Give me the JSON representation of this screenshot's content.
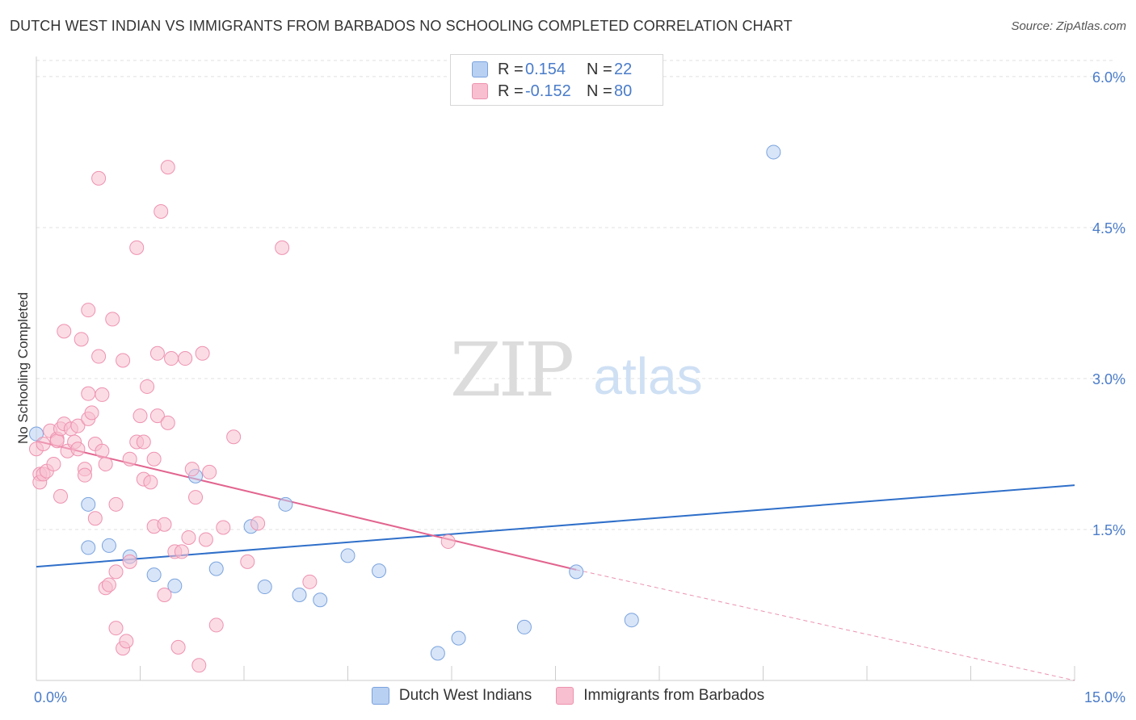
{
  "title": "DUTCH WEST INDIAN VS IMMIGRANTS FROM BARBADOS NO SCHOOLING COMPLETED CORRELATION CHART",
  "source": "Source: ZipAtlas.com",
  "watermark": {
    "part1": "ZIP",
    "part2": "atlas"
  },
  "legend": {
    "series1": {
      "r_label": "R =",
      "r_value": "0.154",
      "n_label": "N =",
      "n_value": "22"
    },
    "series2": {
      "r_label": "R =",
      "r_value": "-0.152",
      "n_label": "N =",
      "n_value": "80"
    }
  },
  "colors": {
    "blue_fill": "#b8d0f2",
    "blue_stroke": "#7aa3de",
    "blue_line": "#2f6fc9",
    "pink_fill": "#f7bfd0",
    "pink_stroke": "#ee92b0",
    "pink_line": "#e2648f",
    "axis_label": "#4a7cc9",
    "grid": "#e0e0e0"
  },
  "chart_data": {
    "type": "scatter",
    "title": "DUTCH WEST INDIAN VS IMMIGRANTS FROM BARBADOS NO SCHOOLING COMPLETED CORRELATION CHART",
    "xlabel": "",
    "ylabel": "No Schooling Completed",
    "xlim": [
      0,
      15
    ],
    "ylim": [
      0,
      6.2
    ],
    "x_tick_labels": [
      {
        "value": 0,
        "label": "0.0%"
      },
      {
        "value": 15,
        "label": "15.0%"
      }
    ],
    "y_ticks": [
      {
        "value": 1.5,
        "label": "1.5%"
      },
      {
        "value": 3.0,
        "label": "3.0%"
      },
      {
        "value": 4.5,
        "label": "4.5%"
      },
      {
        "value": 6.0,
        "label": "6.0%"
      }
    ],
    "x_minor_ticks": [
      1.5,
      3.0,
      4.5,
      6.0,
      7.5,
      9.0,
      10.5,
      12.0,
      13.5,
      15.0
    ],
    "grid": true,
    "legend_position": "top-center",
    "series": [
      {
        "name": "Dutch West Indians",
        "color": "#b8d0f2",
        "points": [
          [
            0.0,
            2.45
          ],
          [
            0.75,
            1.75
          ],
          [
            0.75,
            1.32
          ],
          [
            1.05,
            1.34
          ],
          [
            1.35,
            1.23
          ],
          [
            1.7,
            1.05
          ],
          [
            2.0,
            0.94
          ],
          [
            2.3,
            2.03
          ],
          [
            2.6,
            1.11
          ],
          [
            3.1,
            1.53
          ],
          [
            3.3,
            0.93
          ],
          [
            3.6,
            1.75
          ],
          [
            3.8,
            0.85
          ],
          [
            4.1,
            0.8
          ],
          [
            4.5,
            1.24
          ],
          [
            4.95,
            1.09
          ],
          [
            5.8,
            0.27
          ],
          [
            6.1,
            0.42
          ],
          [
            7.05,
            0.53
          ],
          [
            7.8,
            1.08
          ],
          [
            8.6,
            0.6
          ],
          [
            10.65,
            5.25
          ]
        ]
      },
      {
        "name": "Immigrants from Barbados",
        "color": "#f7bfd0",
        "points": [
          [
            0.0,
            2.3
          ],
          [
            0.05,
            2.05
          ],
          [
            0.05,
            1.97
          ],
          [
            0.1,
            2.35
          ],
          [
            0.1,
            2.05
          ],
          [
            0.15,
            2.08
          ],
          [
            0.2,
            2.48
          ],
          [
            0.25,
            2.15
          ],
          [
            0.3,
            2.4
          ],
          [
            0.3,
            2.38
          ],
          [
            0.35,
            2.5
          ],
          [
            0.35,
            1.83
          ],
          [
            0.4,
            3.47
          ],
          [
            0.4,
            2.55
          ],
          [
            0.45,
            2.28
          ],
          [
            0.5,
            2.5
          ],
          [
            0.55,
            2.37
          ],
          [
            0.6,
            2.53
          ],
          [
            0.6,
            2.3
          ],
          [
            0.65,
            3.39
          ],
          [
            0.7,
            2.1
          ],
          [
            0.7,
            2.04
          ],
          [
            0.75,
            3.68
          ],
          [
            0.75,
            2.85
          ],
          [
            0.75,
            2.6
          ],
          [
            0.8,
            2.66
          ],
          [
            0.85,
            2.35
          ],
          [
            0.85,
            1.61
          ],
          [
            0.9,
            3.22
          ],
          [
            0.9,
            4.99
          ],
          [
            0.95,
            2.84
          ],
          [
            0.95,
            2.28
          ],
          [
            1.0,
            2.15
          ],
          [
            1.0,
            0.92
          ],
          [
            1.05,
            0.95
          ],
          [
            1.1,
            3.59
          ],
          [
            1.15,
            1.75
          ],
          [
            1.15,
            1.08
          ],
          [
            1.15,
            0.52
          ],
          [
            1.25,
            3.18
          ],
          [
            1.25,
            0.32
          ],
          [
            1.3,
            0.39
          ],
          [
            1.35,
            2.2
          ],
          [
            1.35,
            1.18
          ],
          [
            1.45,
            2.37
          ],
          [
            1.45,
            4.3
          ],
          [
            1.5,
            2.63
          ],
          [
            1.55,
            2.0
          ],
          [
            1.55,
            2.37
          ],
          [
            1.6,
            2.92
          ],
          [
            1.65,
            1.97
          ],
          [
            1.7,
            2.2
          ],
          [
            1.7,
            1.53
          ],
          [
            1.75,
            3.25
          ],
          [
            1.75,
            2.63
          ],
          [
            1.8,
            4.66
          ],
          [
            1.85,
            1.55
          ],
          [
            1.85,
            0.85
          ],
          [
            1.9,
            2.56
          ],
          [
            1.9,
            5.1
          ],
          [
            1.95,
            3.2
          ],
          [
            2.0,
            1.28
          ],
          [
            2.05,
            0.33
          ],
          [
            2.1,
            1.28
          ],
          [
            2.15,
            3.2
          ],
          [
            2.2,
            1.42
          ],
          [
            2.25,
            2.1
          ],
          [
            2.3,
            1.82
          ],
          [
            2.35,
            0.15
          ],
          [
            2.4,
            3.25
          ],
          [
            2.45,
            1.4
          ],
          [
            2.5,
            2.07
          ],
          [
            2.6,
            0.55
          ],
          [
            2.7,
            1.52
          ],
          [
            2.85,
            2.42
          ],
          [
            3.05,
            1.18
          ],
          [
            3.2,
            1.56
          ],
          [
            3.55,
            4.3
          ],
          [
            3.95,
            0.98
          ],
          [
            5.95,
            1.38
          ]
        ]
      }
    ],
    "trend_lines": [
      {
        "series": "Dutch West Indians",
        "x": [
          0.0,
          15.0
        ],
        "y": [
          1.13,
          1.94
        ]
      },
      {
        "series": "Immigrants from Barbados",
        "x": [
          0.0,
          7.8
        ],
        "y": [
          2.38,
          1.1
        ],
        "extrapolated_to": [
          15.0,
          0.0
        ]
      }
    ]
  },
  "bottom_legend": {
    "series1": "Dutch West Indians",
    "series2": "Immigrants from Barbados"
  }
}
